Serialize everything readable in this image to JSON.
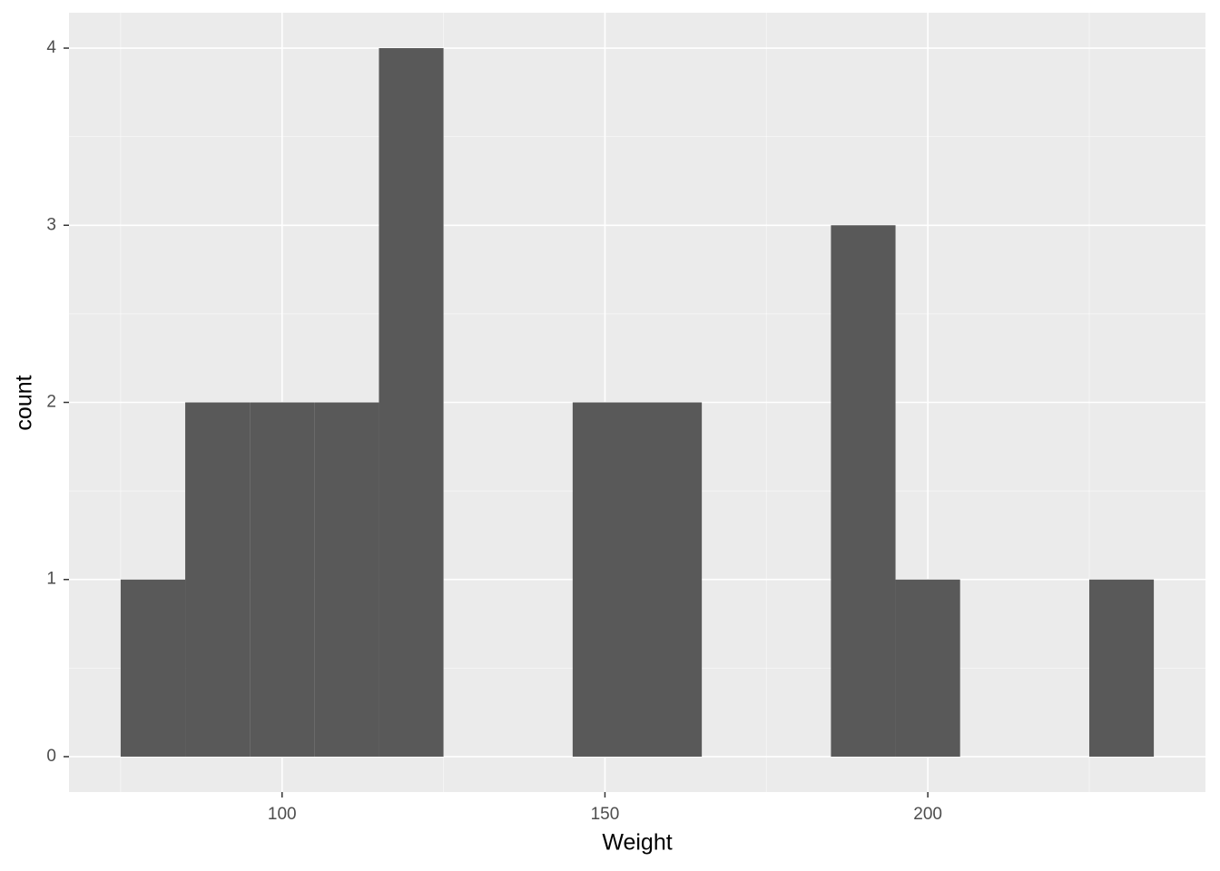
{
  "chart_data": {
    "type": "histogram",
    "x_label": "Weight",
    "y_label": "count",
    "bins": [
      75,
      85,
      95,
      105,
      115,
      125,
      135,
      145,
      155,
      165,
      175,
      185,
      195,
      205,
      215,
      225,
      235
    ],
    "values": [
      1,
      2,
      2,
      2,
      4,
      0,
      0,
      2,
      2,
      0,
      0,
      3,
      1,
      0,
      0,
      1
    ],
    "color": "#595959",
    "xlim": [
      67,
      243
    ],
    "xticks": [
      100,
      150,
      200
    ],
    "x_minor_grid": [
      75,
      125,
      175,
      225
    ],
    "ylim": [
      -0.2,
      4.2
    ],
    "yticks": [
      0,
      1,
      2,
      3,
      4
    ],
    "y_minor_grid": [
      0.5,
      1.5,
      2.5,
      3.5
    ],
    "grid": true
  }
}
